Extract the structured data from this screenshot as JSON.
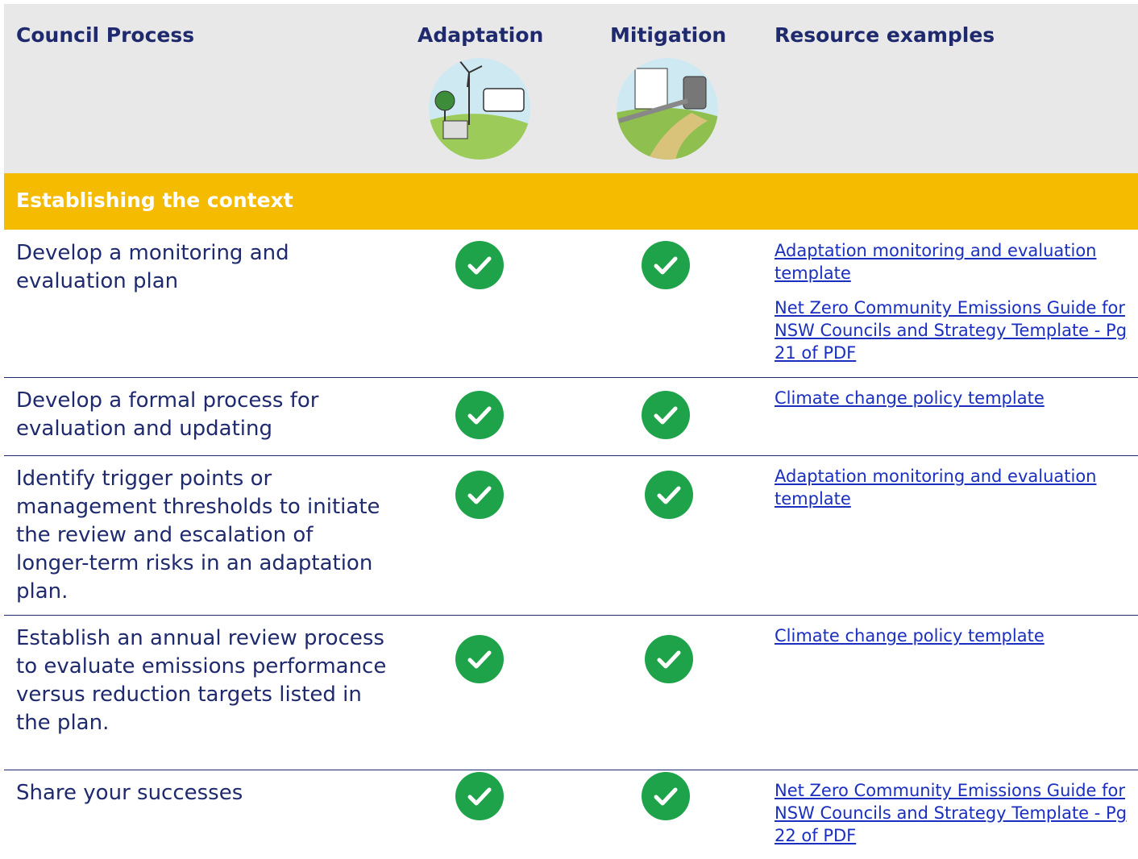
{
  "header": {
    "columns": [
      "Council Process",
      "Adaptation",
      "Mitigation",
      "Resource examples"
    ]
  },
  "section": {
    "title": "Establishing the context"
  },
  "rows": [
    {
      "process": "Develop a monitoring and evaluation plan",
      "resources": [
        "Adaptation monitoring and evaluation template",
        "Net Zero Community Emissions Guide for NSW Councils and Strategy Template - Pg 21 of PDF"
      ]
    },
    {
      "process": "Develop a formal process for evaluation and updating",
      "resources": [
        "Climate change policy template"
      ]
    },
    {
      "process": "Identify trigger points or management thresholds to initiate the review and escalation of longer-term risks in an adaptation plan.",
      "resources": [
        "Adaptation monitoring and evaluation template"
      ]
    },
    {
      "process": "Establish an annual review process to evaluate emissions performance versus reduction targets listed in the plan.",
      "resources": [
        "Climate change policy template"
      ]
    },
    {
      "process": "Share your successes",
      "resources": [
        "Net Zero Community Emissions Guide for NSW Councils and Strategy Template - Pg 22 of PDF"
      ]
    }
  ]
}
